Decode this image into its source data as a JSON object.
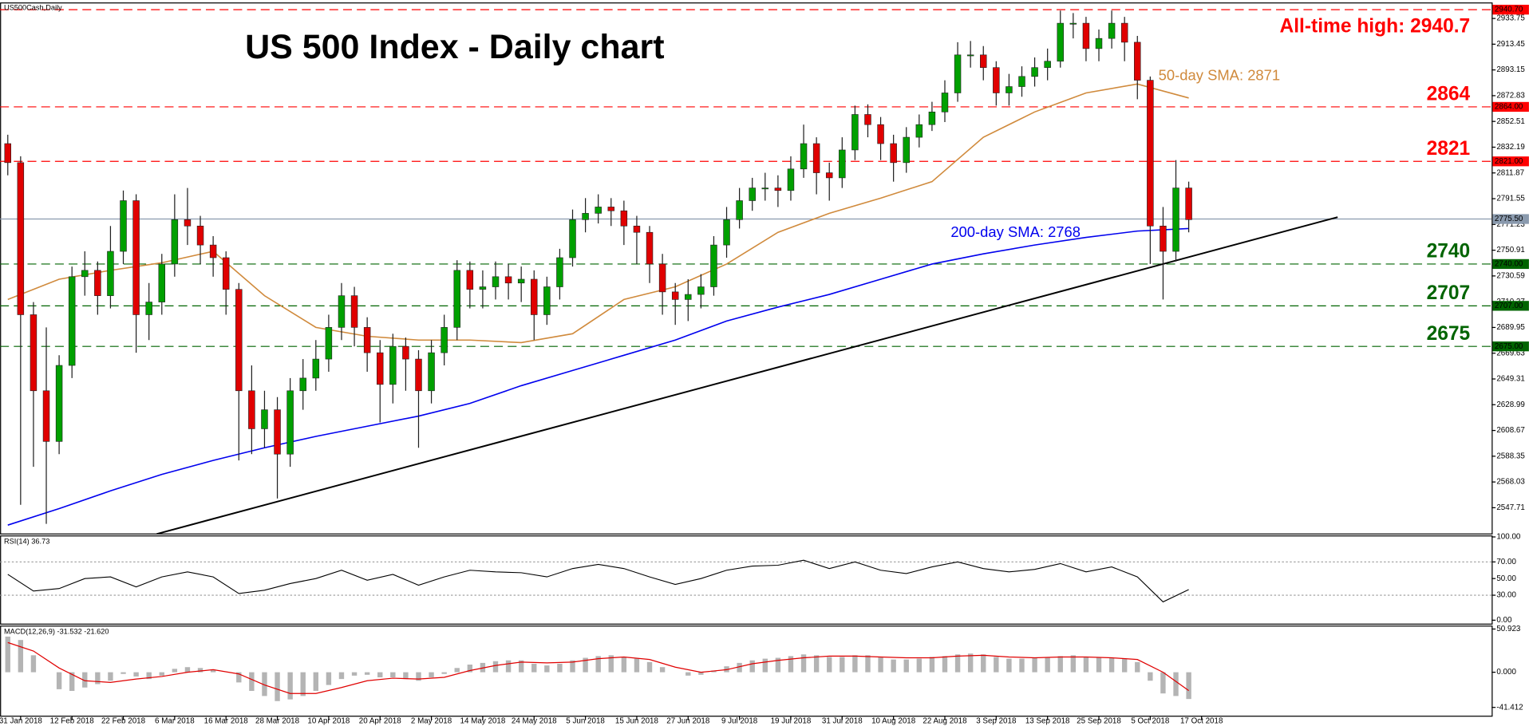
{
  "chart_data": [
    {
      "type": "candlestick",
      "header": "US500Cash,Daily",
      "title": "US 500 Index - Daily chart",
      "xlim": [
        -0.6,
        115.6
      ],
      "ylim": [
        2527,
        2946
      ],
      "yticks": [
        2933.75,
        2913.45,
        2893.15,
        2872.83,
        2852.51,
        2832.19,
        2811.87,
        2791.55,
        2771.23,
        2750.91,
        2730.59,
        2710.27,
        2689.95,
        2669.63,
        2649.31,
        2628.99,
        2608.67,
        2588.35,
        2568.03,
        2547.71
      ],
      "xticks": [
        {
          "value": 1,
          "label": "31 Jan 2018"
        },
        {
          "value": 5,
          "label": "12 Feb 2018"
        },
        {
          "value": 9,
          "label": "22 Feb 2018"
        },
        {
          "value": 13,
          "label": "6 Mar 2018"
        },
        {
          "value": 17,
          "label": "16 Mar 2018"
        },
        {
          "value": 21,
          "label": "28 Mar 2018"
        },
        {
          "value": 25,
          "label": "10 Apr 2018"
        },
        {
          "value": 29,
          "label": "20 Apr 2018"
        },
        {
          "value": 33,
          "label": "2 May 2018"
        },
        {
          "value": 37,
          "label": "14 May 2018"
        },
        {
          "value": 41,
          "label": "24 May 2018"
        },
        {
          "value": 45,
          "label": "5 Jun 2018"
        },
        {
          "value": 49,
          "label": "15 Jun 2018"
        },
        {
          "value": 53,
          "label": "27 Jun 2018"
        },
        {
          "value": 57,
          "label": "9 Jul 2018"
        },
        {
          "value": 61,
          "label": "19 Jul 2018"
        },
        {
          "value": 65,
          "label": "31 Jul 2018"
        },
        {
          "value": 69,
          "label": "10 Aug 2018"
        },
        {
          "value": 73,
          "label": "22 Aug 2018"
        },
        {
          "value": 77,
          "label": "3 Sep 2018"
        },
        {
          "value": 81,
          "label": "13 Sep 2018"
        },
        {
          "value": 85,
          "label": "25 Sep 2018"
        },
        {
          "value": 89,
          "label": "5 Oct 2018"
        },
        {
          "value": 93,
          "label": "17 Oct 2018"
        }
      ],
      "up_color": "#00a000",
      "down_color": "#e00000",
      "open": [
        2835,
        2820,
        2700,
        2640,
        2600,
        2660,
        2730,
        2735,
        2715,
        2750,
        2790,
        2700,
        2710,
        2740,
        2775,
        2770,
        2755,
        2745,
        2720,
        2640,
        2610,
        2625,
        2590,
        2640,
        2650,
        2665,
        2690,
        2715,
        2690,
        2670,
        2645,
        2675,
        2665,
        2640,
        2670,
        2690,
        2735,
        2720,
        2722,
        2730,
        2725,
        2728,
        2700,
        2722,
        2745,
        2775,
        2780,
        2785,
        2782,
        2770,
        2765,
        2740,
        2718,
        2712,
        2716,
        2722,
        2755,
        2775,
        2790,
        2800,
        2800,
        2798,
        2815,
        2835,
        2812,
        2808,
        2830,
        2858,
        2850,
        2835,
        2820,
        2840,
        2850,
        2860,
        2875,
        2905,
        2905,
        2895,
        2875,
        2880,
        2888,
        2895,
        2900,
        2930,
        2930,
        2910,
        2918,
        2930,
        2915,
        2885,
        2770,
        2750,
        2800
      ],
      "high": [
        2842,
        2825,
        2710,
        2690,
        2668,
        2738,
        2750,
        2742,
        2770,
        2798,
        2795,
        2725,
        2748,
        2795,
        2800,
        2778,
        2762,
        2750,
        2725,
        2660,
        2640,
        2635,
        2650,
        2665,
        2680,
        2700,
        2725,
        2722,
        2698,
        2680,
        2685,
        2682,
        2672,
        2680,
        2700,
        2743,
        2742,
        2735,
        2742,
        2740,
        2738,
        2735,
        2730,
        2752,
        2783,
        2792,
        2795,
        2792,
        2790,
        2778,
        2770,
        2748,
        2725,
        2728,
        2732,
        2762,
        2785,
        2800,
        2808,
        2812,
        2810,
        2825,
        2850,
        2840,
        2820,
        2840,
        2865,
        2866,
        2856,
        2842,
        2848,
        2858,
        2868,
        2885,
        2915,
        2916,
        2912,
        2900,
        2890,
        2896,
        2903,
        2910,
        2940,
        2938,
        2935,
        2925,
        2940,
        2935,
        2920,
        2888,
        2785,
        2822,
        2805
      ],
      "low": [
        2810,
        2550,
        2580,
        2535,
        2590,
        2650,
        2715,
        2700,
        2705,
        2740,
        2670,
        2680,
        2700,
        2730,
        2755,
        2740,
        2730,
        2700,
        2585,
        2590,
        2595,
        2555,
        2580,
        2625,
        2640,
        2655,
        2680,
        2675,
        2655,
        2615,
        2630,
        2640,
        2595,
        2630,
        2660,
        2680,
        2705,
        2705,
        2712,
        2712,
        2710,
        2680,
        2692,
        2712,
        2738,
        2765,
        2772,
        2770,
        2755,
        2740,
        2725,
        2700,
        2692,
        2695,
        2705,
        2715,
        2745,
        2768,
        2782,
        2790,
        2785,
        2790,
        2808,
        2795,
        2790,
        2800,
        2822,
        2840,
        2822,
        2805,
        2812,
        2832,
        2845,
        2852,
        2868,
        2895,
        2885,
        2865,
        2865,
        2872,
        2880,
        2885,
        2895,
        2918,
        2900,
        2900,
        2910,
        2900,
        2870,
        2740,
        2712,
        2742,
        2765
      ],
      "close": [
        2820,
        2700,
        2640,
        2600,
        2660,
        2730,
        2735,
        2715,
        2750,
        2790,
        2700,
        2710,
        2740,
        2775,
        2770,
        2755,
        2745,
        2720,
        2640,
        2610,
        2625,
        2590,
        2640,
        2650,
        2665,
        2690,
        2715,
        2690,
        2670,
        2645,
        2675,
        2665,
        2640,
        2670,
        2690,
        2735,
        2720,
        2722,
        2730,
        2725,
        2728,
        2700,
        2722,
        2745,
        2775,
        2780,
        2785,
        2782,
        2770,
        2765,
        2740,
        2718,
        2712,
        2716,
        2722,
        2755,
        2775,
        2790,
        2800,
        2800,
        2798,
        2815,
        2835,
        2812,
        2808,
        2830,
        2858,
        2850,
        2835,
        2820,
        2840,
        2850,
        2860,
        2875,
        2905,
        2905,
        2895,
        2875,
        2880,
        2888,
        2895,
        2900,
        2930,
        2930,
        2910,
        2918,
        2930,
        2915,
        2885,
        2770,
        2750,
        2800,
        2775
      ],
      "series": [
        {
          "label": "50-day SMA: 2871",
          "color": "#d08a3c",
          "x": [
            0,
            4,
            8,
            12,
            16,
            20,
            24,
            28,
            32,
            36,
            40,
            44,
            48,
            52,
            56,
            60,
            64,
            68,
            72,
            76,
            80,
            84,
            88,
            92
          ],
          "values": [
            2712,
            2728,
            2735,
            2741,
            2750,
            2715,
            2690,
            2683,
            2680,
            2680,
            2678,
            2685,
            2712,
            2722,
            2740,
            2765,
            2780,
            2792,
            2805,
            2840,
            2860,
            2875,
            2882,
            2871
          ]
        },
        {
          "label": "200-day SMA: 2768",
          "color": "#0000ee",
          "x": [
            0,
            4,
            8,
            12,
            16,
            20,
            24,
            28,
            32,
            36,
            40,
            44,
            48,
            52,
            56,
            60,
            64,
            68,
            72,
            76,
            80,
            84,
            88,
            92
          ],
          "values": [
            2534,
            2547,
            2561,
            2574,
            2585,
            2595,
            2604,
            2612,
            2620,
            2630,
            2644,
            2656,
            2668,
            2680,
            2695,
            2706,
            2716,
            2728,
            2740,
            2748,
            2755,
            2761,
            2766,
            2768
          ]
        },
        {
          "color": "#000000",
          "x": [
            11.6,
            103.6
          ],
          "values": [
            2527,
            2777
          ]
        }
      ],
      "levels": [
        {
          "value": 2940.7,
          "label": "2940.70",
          "text": "All-time high: 2940.7",
          "color": "#ff0000"
        },
        {
          "value": 2864,
          "label": "2864.00",
          "text": "2864",
          "color": "#ff0000"
        },
        {
          "value": 2821,
          "label": "2821.00",
          "text": "2821",
          "color": "#ff0000"
        },
        {
          "value": 2775.5,
          "label": "2775.50",
          "color": "#8a9aae"
        },
        {
          "value": 2740,
          "label": "2740.00",
          "text": "2740",
          "color": "#006400"
        },
        {
          "value": 2707,
          "label": "2707.00",
          "text": "2707",
          "color": "#006400"
        },
        {
          "value": 2675,
          "label": "2675.00",
          "text": "2675",
          "color": "#006400"
        }
      ]
    },
    {
      "type": "line",
      "title": "RSI(14) 36.73",
      "xlim": [
        -0.6,
        115.6
      ],
      "ylim": [
        -4.7,
        101.2
      ],
      "yticks": [
        {
          "value": 100,
          "label": "100.00"
        },
        {
          "value": 70,
          "label": "70.00"
        },
        {
          "value": 50,
          "label": "50.00"
        },
        {
          "value": 30,
          "label": "30.00"
        },
        {
          "value": 0,
          "label": "0.00"
        }
      ],
      "hlines": [
        70,
        30
      ],
      "color": "#000000",
      "x": [
        0,
        2,
        4,
        6,
        8,
        10,
        12,
        14,
        16,
        18,
        20,
        22,
        24,
        26,
        28,
        30,
        32,
        34,
        36,
        38,
        40,
        42,
        44,
        46,
        48,
        50,
        52,
        54,
        56,
        58,
        60,
        62,
        64,
        66,
        68,
        70,
        72,
        74,
        76,
        78,
        80,
        82,
        84,
        86,
        88,
        90,
        92
      ],
      "values": [
        55,
        35,
        38,
        50,
        52,
        40,
        52,
        58,
        52,
        32,
        36,
        44,
        50,
        60,
        48,
        55,
        42,
        52,
        60,
        58,
        57,
        52,
        62,
        67,
        62,
        52,
        43,
        50,
        60,
        65,
        66,
        72,
        62,
        70,
        60,
        56,
        64,
        70,
        62,
        58,
        61,
        68,
        58,
        64,
        52,
        22,
        36.73
      ]
    },
    {
      "type": "bar",
      "title": "MACD(12,26,9) -31.532 -21.620",
      "xlim": [
        -0.6,
        115.6
      ],
      "ylim": [
        -51.8,
        54.4
      ],
      "yticks": [
        50.923,
        {
          "value": 0,
          "label": "0.000"
        },
        -41.412
      ],
      "color": "#b4b4b4",
      "values": [
        42,
        38,
        20,
        0,
        -20,
        -22,
        -18,
        -14,
        -10,
        -2,
        -5,
        -8,
        -4,
        4,
        6,
        5,
        3,
        0,
        -12,
        -22,
        -28,
        -34,
        -32,
        -28,
        -22,
        -15,
        -8,
        -4,
        -3,
        -6,
        -6,
        -8,
        -10,
        -6,
        -2,
        5,
        9,
        11,
        13,
        14,
        14,
        10,
        8,
        10,
        14,
        17,
        19,
        20,
        18,
        16,
        12,
        6,
        0,
        -4,
        -3,
        2,
        7,
        11,
        14,
        16,
        17,
        19,
        21,
        20,
        18,
        18,
        20,
        20,
        18,
        15,
        15,
        16,
        18,
        19,
        21,
        22,
        21,
        18,
        16,
        16,
        17,
        17,
        19,
        20,
        18,
        17,
        17,
        16,
        12,
        -10,
        -25,
        -28,
        -31.532
      ],
      "signal": {
        "color": "#e00000",
        "x": [
          0,
          2,
          4,
          6,
          8,
          10,
          12,
          14,
          16,
          18,
          20,
          22,
          24,
          26,
          28,
          30,
          32,
          34,
          36,
          38,
          40,
          42,
          44,
          46,
          48,
          50,
          52,
          54,
          56,
          58,
          60,
          62,
          64,
          66,
          68,
          70,
          72,
          74,
          76,
          78,
          80,
          82,
          84,
          86,
          88,
          90,
          92
        ],
        "values": [
          35,
          25,
          5,
          -10,
          -12,
          -8,
          -5,
          0,
          3,
          -2,
          -15,
          -25,
          -25,
          -18,
          -10,
          -7,
          -8,
          -6,
          2,
          8,
          12,
          11,
          12,
          16,
          18,
          15,
          6,
          0,
          3,
          10,
          14,
          17,
          19,
          19,
          18,
          17,
          17,
          19,
          20,
          18,
          17,
          18,
          18,
          17,
          15,
          0,
          -21.62
        ]
      }
    }
  ]
}
